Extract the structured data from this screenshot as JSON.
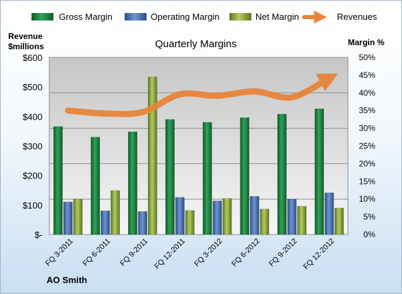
{
  "chart_data": {
    "type": "bar",
    "title": "Quarterly Margins",
    "company": "AO Smith",
    "y_left_label_line1": "Revenue",
    "y_left_label_line2": "$millions",
    "y_right_label": "Margin %",
    "categories": [
      "FQ 3-2011",
      "FQ 6-2011",
      "FQ 9-2011",
      "FQ 12-2011",
      "FQ 3-2012",
      "FQ 6-2012",
      "FQ 9-2012",
      "FQ 12-2012"
    ],
    "left_axis": {
      "min": 0,
      "max": 600,
      "ticks": [
        0,
        100,
        200,
        300,
        400,
        500,
        600
      ],
      "tick_labels": [
        "$-",
        "$100",
        "$200",
        "$300",
        "$400",
        "$500",
        "$600"
      ]
    },
    "right_axis": {
      "min": 0,
      "max": 50,
      "ticks": [
        0,
        5,
        10,
        15,
        20,
        25,
        30,
        35,
        40,
        45,
        50
      ],
      "tick_labels": [
        "0%",
        "5%",
        "10%",
        "15%",
        "20%",
        "25%",
        "30%",
        "35%",
        "40%",
        "45%",
        "50%"
      ]
    },
    "grid": true,
    "legend_position": "top",
    "series": [
      {
        "name": "Gross Margin",
        "kind": "bar",
        "axis": "right",
        "color": "#1e7a3c",
        "values": [
          30.5,
          27.5,
          29.0,
          32.5,
          31.7,
          33.0,
          34.0,
          35.5
        ]
      },
      {
        "name": "Operating Margin",
        "kind": "bar",
        "axis": "right",
        "color": "#4a74b4",
        "values": [
          9.2,
          6.7,
          6.5,
          10.5,
          9.5,
          10.8,
          10.0,
          11.8
        ]
      },
      {
        "name": "Net Margin",
        "kind": "bar",
        "axis": "right",
        "color": "#8faa3c",
        "values": [
          10.0,
          12.4,
          44.5,
          6.8,
          10.2,
          7.2,
          8.0,
          7.5
        ]
      },
      {
        "name": "Revenues",
        "kind": "line",
        "axis": "left",
        "color": "#e8853a",
        "values": [
          420,
          410,
          415,
          475,
          470,
          485,
          465,
          530
        ]
      }
    ]
  }
}
